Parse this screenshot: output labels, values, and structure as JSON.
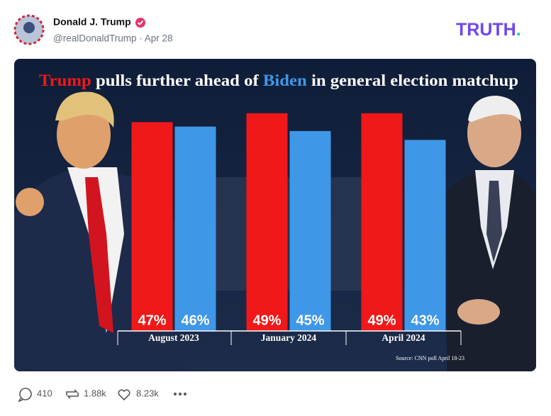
{
  "post": {
    "author": "Donald J. Trump",
    "meta": "@realDonaldTrump · Apr 28",
    "logo": "TRUTH.",
    "replies": "410",
    "reposts": "1.88k",
    "likes": "8.23k"
  },
  "chart_data": {
    "type": "bar",
    "title": "Trump pulls further ahead of Biden in general election matchup",
    "categories": [
      "August 2023",
      "January 2024",
      "April 2024"
    ],
    "series": [
      {
        "name": "Trump",
        "color": "#f01818",
        "values": [
          47,
          49,
          49
        ],
        "value_labels": [
          "47%",
          "49%",
          "49%"
        ]
      },
      {
        "name": "Biden",
        "color": "#3f97e8",
        "values": [
          46,
          45,
          43
        ],
        "value_labels": [
          "46%",
          "45%",
          "43%"
        ]
      }
    ],
    "ylim": [
      0,
      52
    ],
    "source": "Source: CNN poll April 18-23"
  }
}
